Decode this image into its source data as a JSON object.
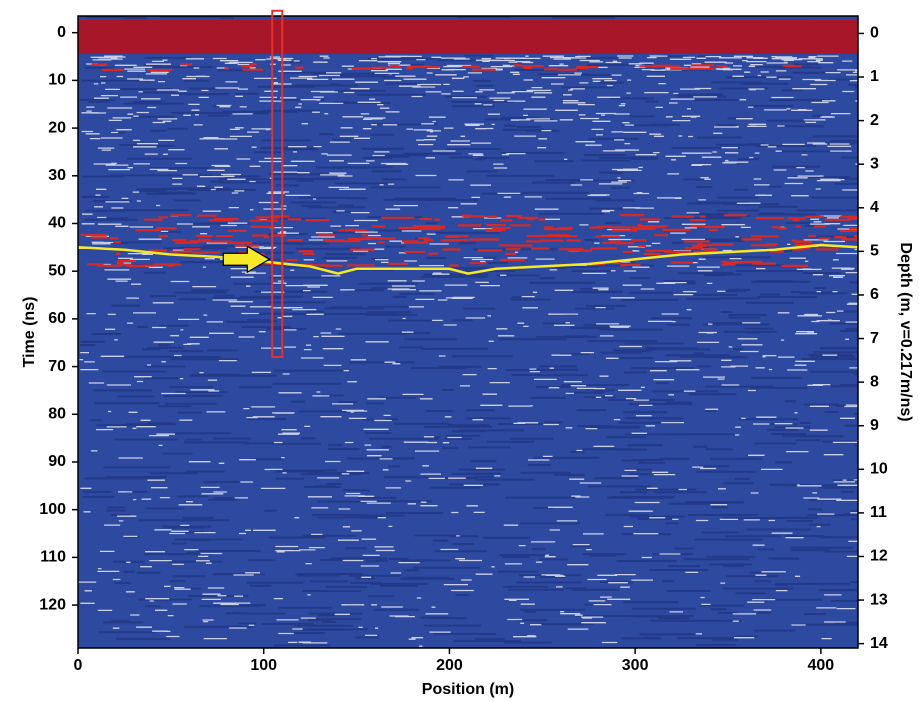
{
  "chart_data": {
    "type": "radargram",
    "x_label": "Position (m)",
    "y_label": "Time (ns)",
    "y2_label": "Depth (m, v=0.217m/ns)",
    "xlim": [
      0,
      420
    ],
    "xticks": [
      0,
      100,
      200,
      300,
      400
    ],
    "ylim": [
      129,
      -3.5
    ],
    "yticks": [
      0,
      10,
      20,
      30,
      40,
      50,
      60,
      70,
      80,
      90,
      100,
      110,
      120
    ],
    "y2lim": [
      14.1,
      -0.4
    ],
    "y2ticks": [
      0,
      1,
      2,
      3,
      4,
      5,
      6,
      7,
      8,
      9,
      10,
      11,
      12,
      13,
      14
    ],
    "series": [
      {
        "color": "#f5e92a",
        "x": [
          0,
          25,
          50,
          75,
          100,
          125,
          140,
          150,
          175,
          200,
          210,
          225,
          250,
          275,
          300,
          325,
          350,
          375,
          400,
          420
        ],
        "values": [
          45,
          45.5,
          46.5,
          47,
          48,
          49,
          50.5,
          49.5,
          49.5,
          49.5,
          50.5,
          49.5,
          49,
          48.5,
          47.5,
          46.5,
          46,
          45.5,
          44.5,
          45
        ]
      }
    ],
    "highlight_box": {
      "x": [
        104.6,
        110
      ],
      "y": [
        -4.6,
        68
      ],
      "color": "#e8302a"
    },
    "arrow": {
      "x": 103,
      "y": 47.5,
      "color": "#f5e92a"
    }
  }
}
